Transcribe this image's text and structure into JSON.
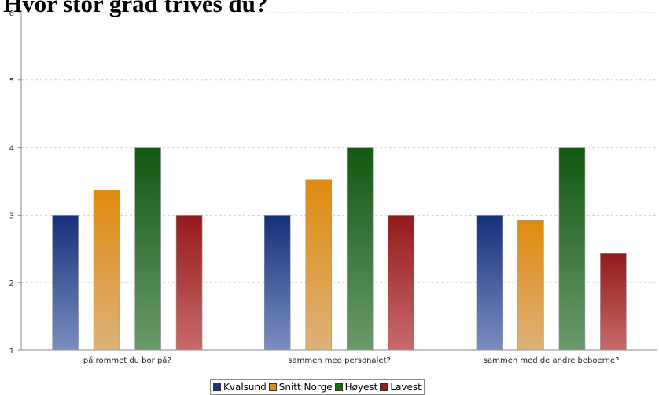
{
  "chart_data": {
    "type": "bar",
    "title": "Hvor stor grad trives du?",
    "xlabel": "",
    "ylabel": "",
    "ylim": [
      1,
      6
    ],
    "yticks": [
      1,
      2,
      3,
      4,
      5,
      6
    ],
    "grid": true,
    "legend_position": "bottom",
    "categories": [
      "på rommet du bor på?",
      "sammen med personalet?",
      "sammen med de andre beboerne?"
    ],
    "series": [
      {
        "name": "Kvalsund",
        "values": [
          3.0,
          3.0,
          3.0
        ],
        "color_top": "#14307a",
        "color_bottom": "#7a8fc0",
        "swatch": "#1a3680"
      },
      {
        "name": "Snitt Norge",
        "values": [
          3.37,
          3.52,
          2.92
        ],
        "color_top": "#e08a0e",
        "color_bottom": "#dcb27a",
        "swatch": "#e08a0e"
      },
      {
        "name": "Høyest",
        "values": [
          4.0,
          4.0,
          4.0
        ],
        "color_top": "#125812",
        "color_bottom": "#6a9a6a",
        "swatch": "#1b6a1b"
      },
      {
        "name": "Lavest",
        "values": [
          3.0,
          3.0,
          2.43
        ],
        "color_top": "#941a1a",
        "color_bottom": "#c86a6a",
        "swatch": "#9a1d1d"
      }
    ]
  }
}
